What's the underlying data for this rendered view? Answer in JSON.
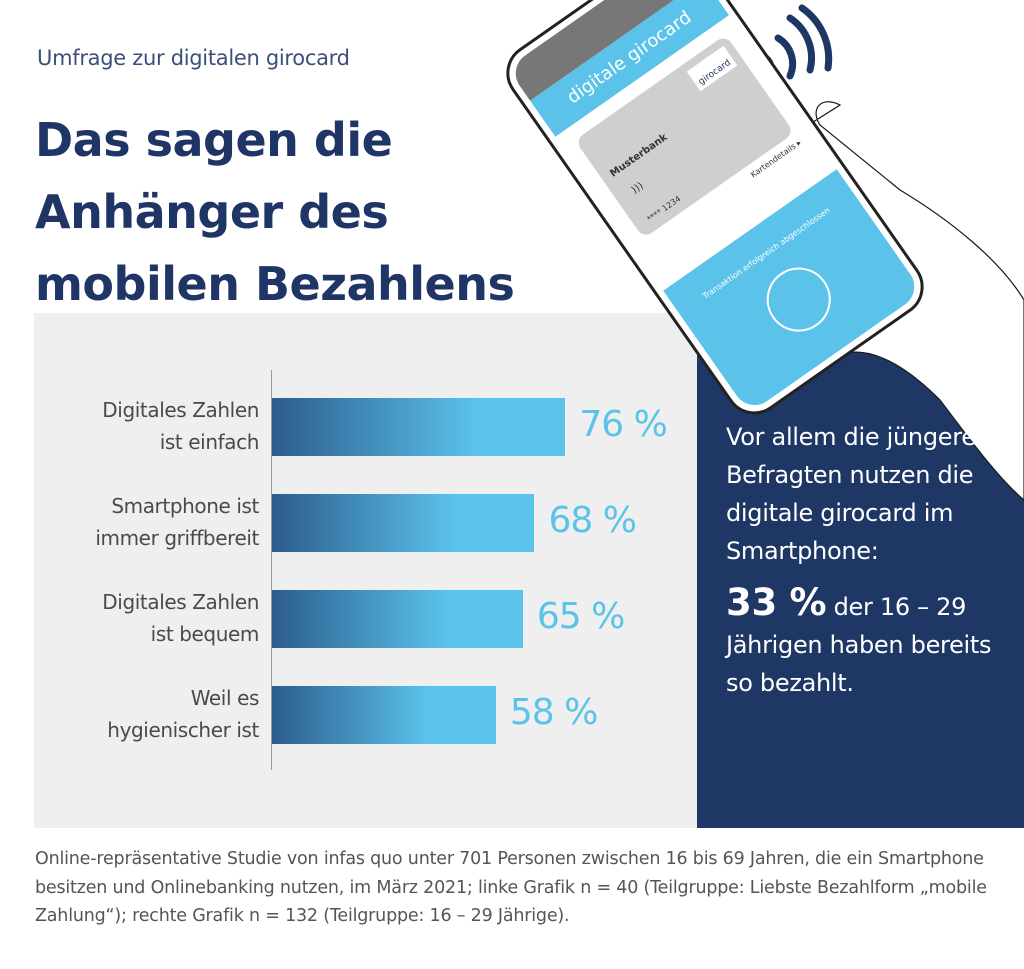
{
  "header": {
    "kicker": "Umfrage zur digitalen girocard",
    "title": "Das sagen die\nAnhänger des\nmobilen Bezahlens"
  },
  "phone": {
    "app_title": "digitale girocard",
    "bank": "Musterbank",
    "card_brand": "girocard",
    "card_details": "Kartendetails ▸",
    "card_number": "**** 1234",
    "status": "Transaktion erfolgreich abgeschlossen"
  },
  "colors": {
    "navy": "#1e3765",
    "light_blue": "#5bc3ea",
    "bar_dark": "#2b5c8e",
    "grey_panel": "#efefef"
  },
  "chart_data": {
    "type": "bar",
    "orientation": "horizontal",
    "unit": "%",
    "categories": [
      "Digitales Zahlen\nist einfach",
      "Smartphone ist\nimmer griffbereit",
      "Digitales Zahlen\nist bequem",
      "Weil es\nhygienischer ist"
    ],
    "values": [
      76,
      68,
      65,
      58
    ],
    "labels": [
      "76 %",
      "68 %",
      "65 %",
      "58 %"
    ],
    "xlim": [
      0,
      100
    ],
    "grid": false
  },
  "side": {
    "text": "Vor allem die jüngeren Befragten nutzen die digitale girocard im Smartphone:",
    "highlight": "33 %",
    "rest": " der 16 – 29 Jährigen haben bereits so bezahlt."
  },
  "footnote": "Online-repräsentative Studie von infas quo unter 701 Personen zwischen 16 bis 69 Jahren, die ein Smartphone besitzen und Onlinebanking nutzen, im März 2021; linke Grafik n = 40 (Teilgruppe: Liebste Bezahlform „mobile Zahlung“); rechte Grafik n = 132 (Teilgruppe: 16 – 29 Jährige)."
}
